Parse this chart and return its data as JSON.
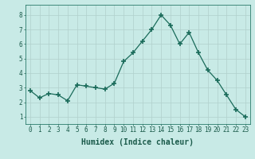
{
  "x": [
    0,
    1,
    2,
    3,
    4,
    5,
    6,
    7,
    8,
    9,
    10,
    11,
    12,
    13,
    14,
    15,
    16,
    17,
    18,
    19,
    20,
    21,
    22,
    23
  ],
  "y": [
    2.8,
    2.3,
    2.6,
    2.5,
    2.1,
    3.2,
    3.1,
    3.0,
    2.9,
    3.3,
    4.8,
    5.4,
    6.2,
    7.0,
    8.0,
    7.3,
    6.0,
    6.8,
    5.4,
    4.2,
    3.5,
    2.5,
    1.5,
    1.0
  ],
  "xlabel": "Humidex (Indice chaleur)",
  "xlim": [
    -0.5,
    23.5
  ],
  "ylim": [
    0.5,
    8.7
  ],
  "yticks": [
    1,
    2,
    3,
    4,
    5,
    6,
    7,
    8
  ],
  "xticks": [
    0,
    1,
    2,
    3,
    4,
    5,
    6,
    7,
    8,
    9,
    10,
    11,
    12,
    13,
    14,
    15,
    16,
    17,
    18,
    19,
    20,
    21,
    22,
    23
  ],
  "line_color": "#1a6b5a",
  "marker": "+",
  "marker_size": 4,
  "marker_lw": 1.2,
  "bg_color": "#c8eae6",
  "grid_color": "#b0d0cc",
  "axis_color": "#2a7a6a",
  "label_color": "#1a5a4a",
  "tick_fontsize": 5.5,
  "xlabel_fontsize": 7.0
}
